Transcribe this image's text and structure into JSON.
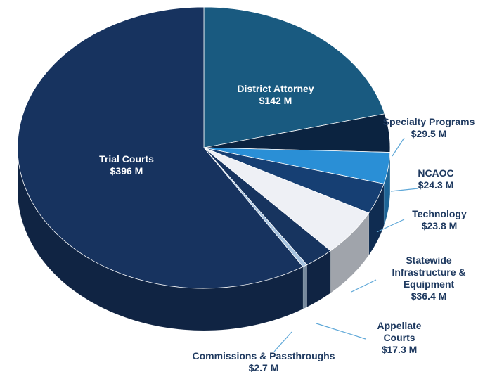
{
  "chart_data": {
    "type": "pie",
    "categories": [
      "District Attorney",
      "Specialty Programs",
      "NCAOC",
      "Technology",
      "Statewide Infrastructure & Equipment",
      "Appellate Courts",
      "Commissions & Passthroughs",
      "Trial Courts"
    ],
    "values": [
      142,
      29.5,
      24.3,
      23.8,
      36.4,
      17.3,
      2.7,
      396
    ],
    "value_labels": [
      "$142 M",
      "$29.5 M",
      "$24.3 M",
      "$23.8 M",
      "$36.4 M",
      "$17.3 M",
      "$2.7 M",
      "$396 M"
    ],
    "colors": [
      "#195a80",
      "#0b2340",
      "#2a8fd6",
      "#163f73",
      "#eef0f5",
      "#17345f",
      "#a8c4e0",
      "#17335f"
    ]
  }
}
